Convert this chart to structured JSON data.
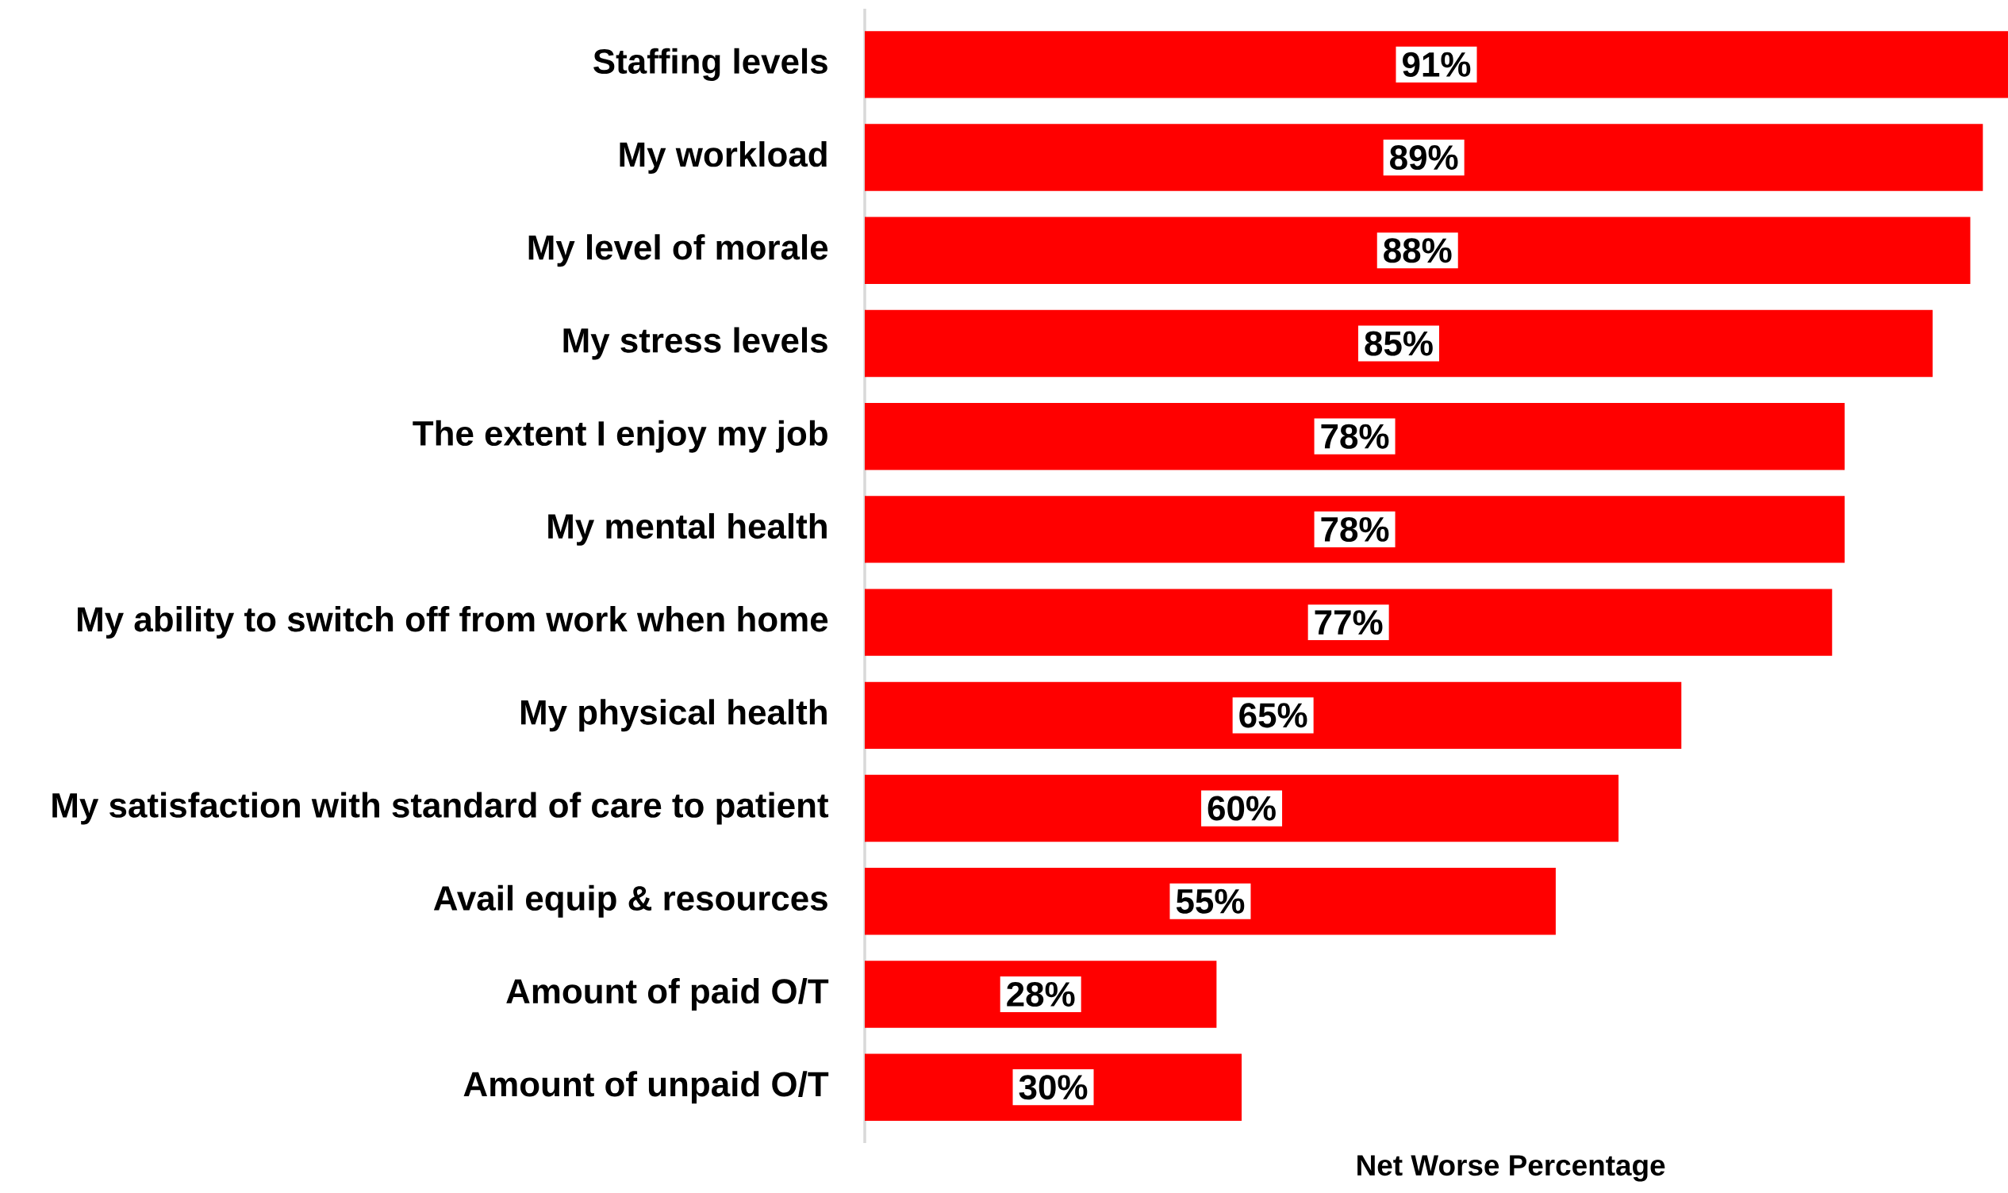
{
  "chart_data": {
    "type": "bar",
    "orientation": "horizontal",
    "xlabel": "Net Worse Percentage",
    "categories": [
      "Staffing levels",
      "My workload",
      "My level of morale",
      "My stress levels",
      "The extent I enjoy my job",
      "My mental health",
      "My ability to switch off from work when home",
      "My physical health",
      "My satisfaction with standard of care to patient",
      "Avail equip & resources",
      "Amount of paid O/T",
      "Amount of unpaid O/T"
    ],
    "values": [
      91,
      89,
      88,
      85,
      78,
      78,
      77,
      65,
      60,
      55,
      28,
      30
    ],
    "value_labels": [
      "91%",
      "89%",
      "88%",
      "85%",
      "78%",
      "78%",
      "77%",
      "65%",
      "60%",
      "55%",
      "28%",
      "30%"
    ],
    "color": "#ff0000"
  }
}
